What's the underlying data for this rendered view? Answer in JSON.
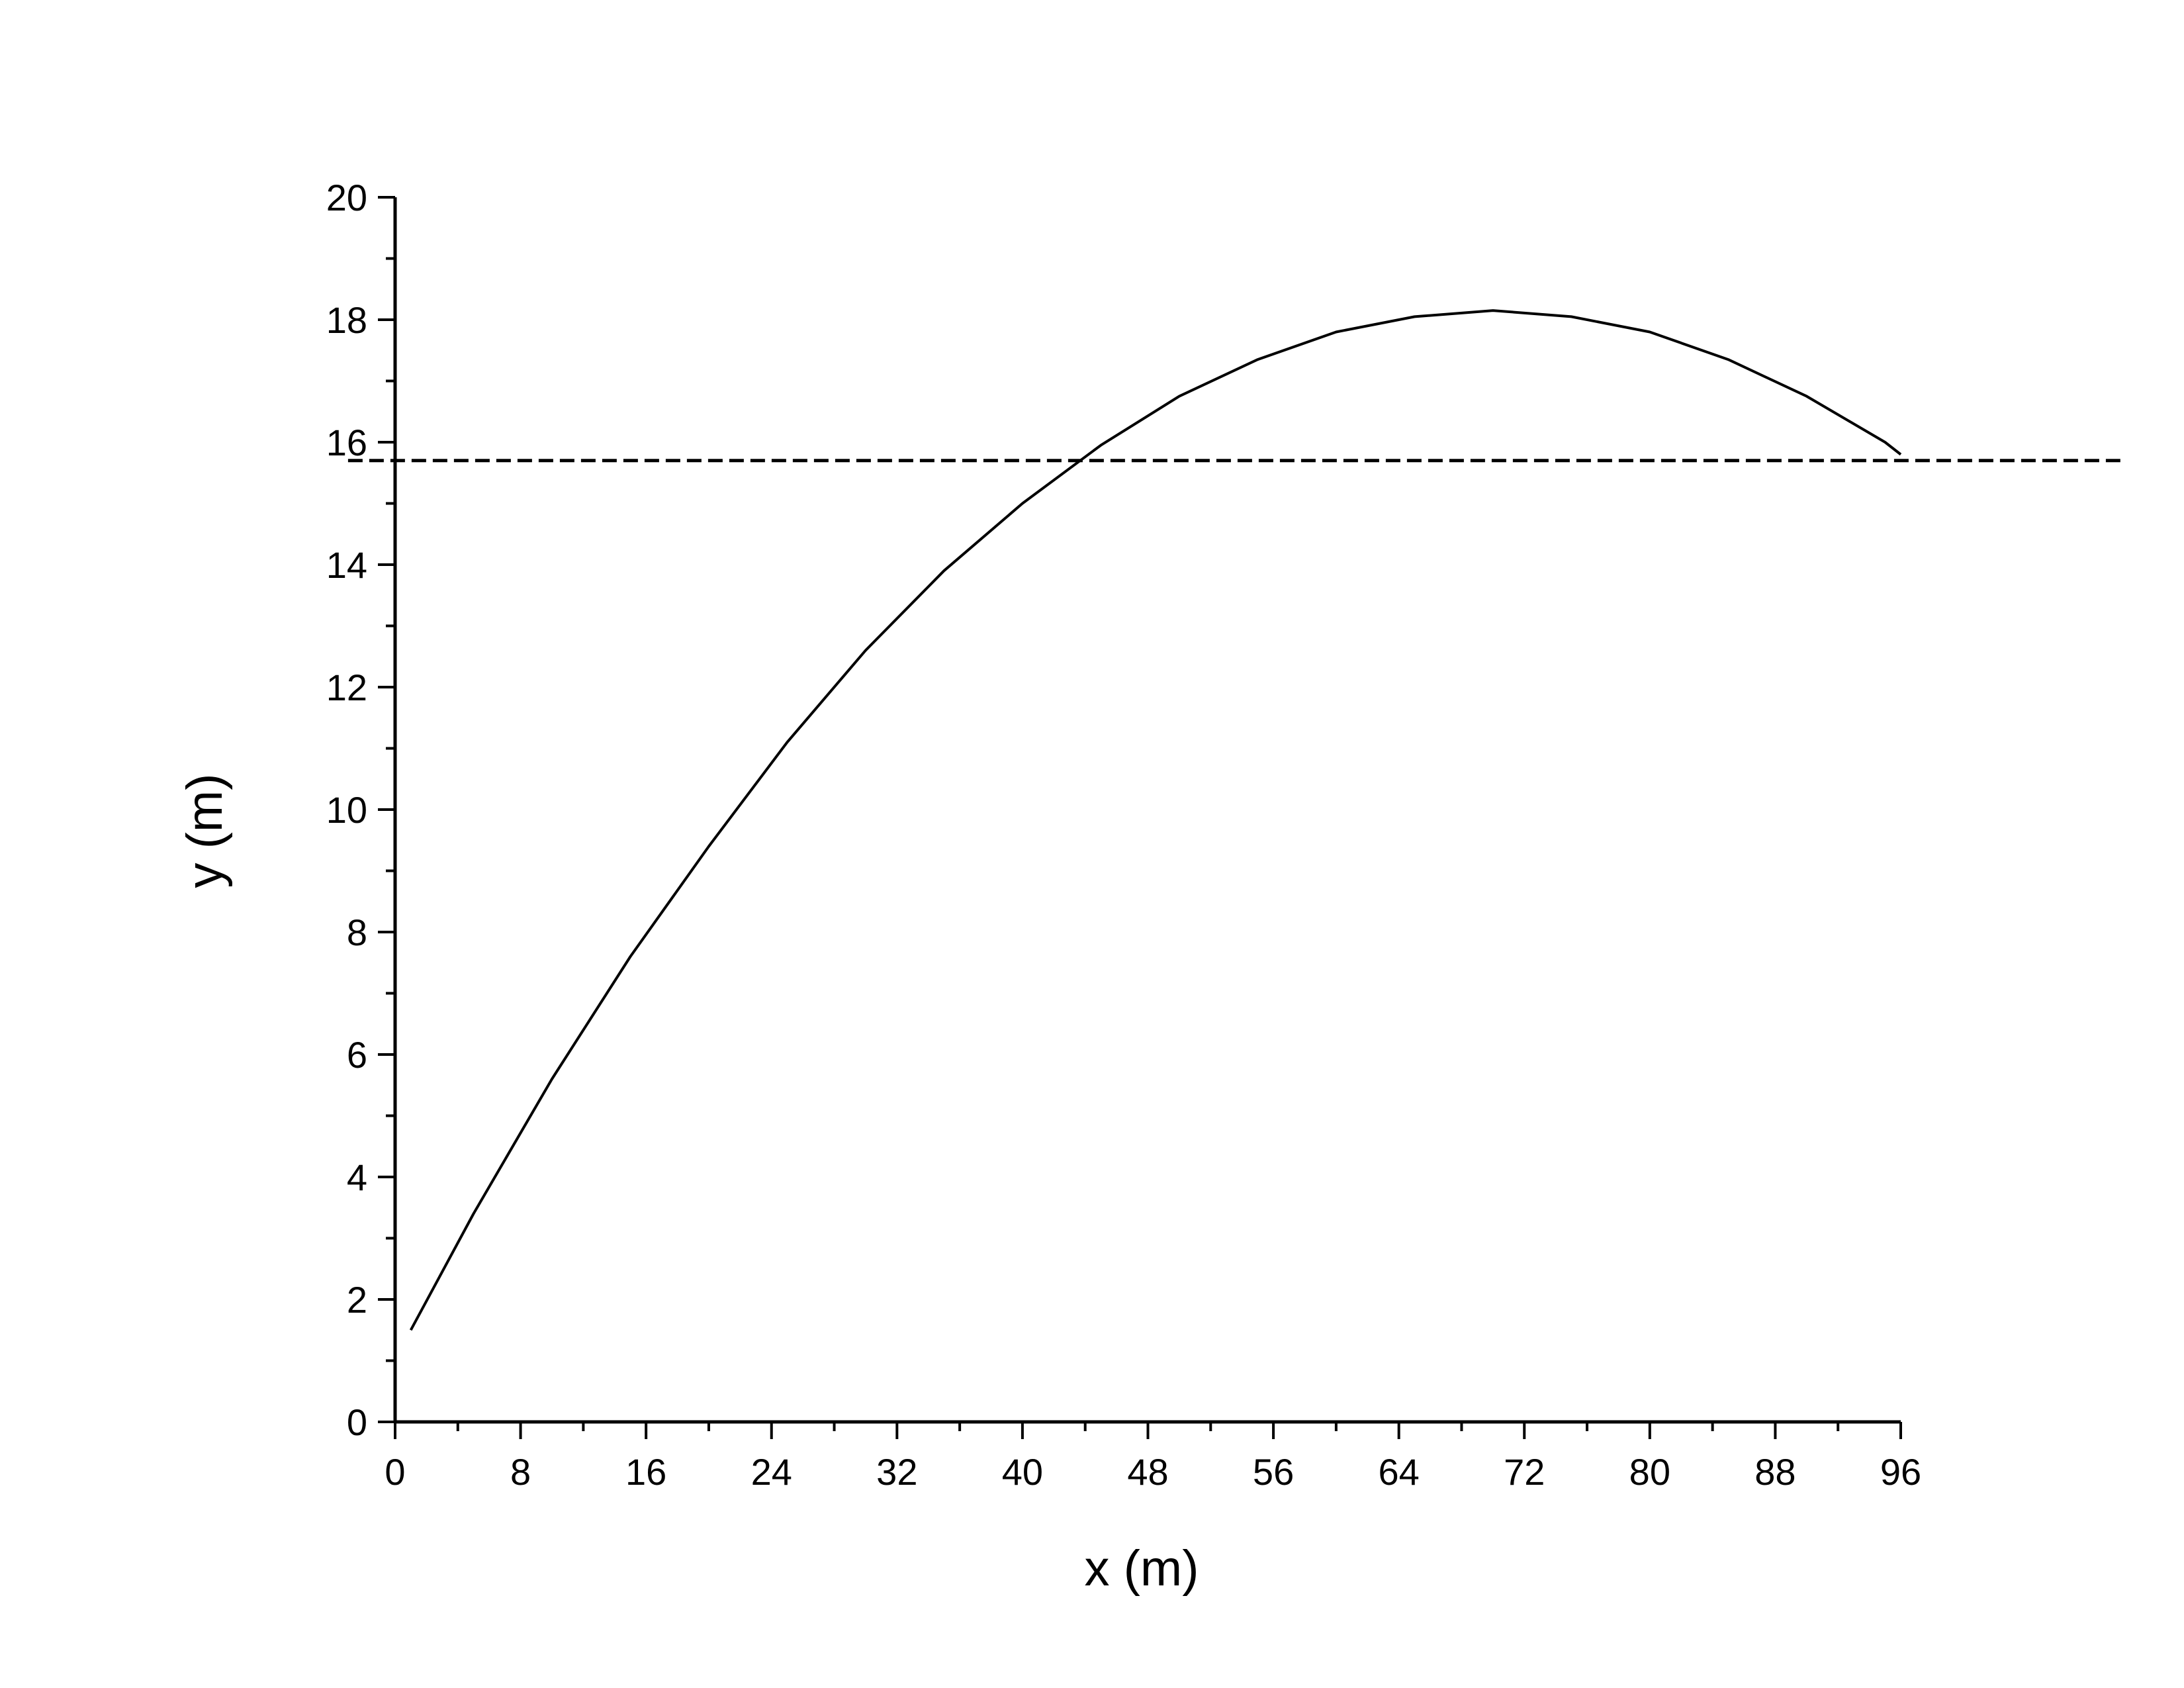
{
  "chart_data": {
    "type": "line",
    "title": "",
    "xlabel": "x (m)",
    "ylabel": "y (m)",
    "xlim": [
      0,
      96
    ],
    "ylim": [
      0,
      20
    ],
    "x_ticks": [
      0,
      8,
      16,
      24,
      32,
      40,
      48,
      56,
      64,
      72,
      80,
      88,
      96
    ],
    "y_ticks": [
      0,
      2,
      4,
      6,
      8,
      10,
      12,
      14,
      16,
      18,
      20
    ],
    "x_tick_labels": [
      "0",
      "8",
      "16",
      "24",
      "32",
      "40",
      "48",
      "56",
      "64",
      "72",
      "80",
      "88",
      "96"
    ],
    "y_tick_labels": [
      "0",
      "2",
      "4",
      "6",
      "8",
      "10",
      "12",
      "14",
      "16",
      "18",
      "20"
    ],
    "grid": false,
    "legend": "none",
    "series": [
      {
        "style": "solid",
        "color": "#000000",
        "x": [
          1,
          5,
          10,
          15,
          20,
          25,
          30,
          35,
          40,
          45,
          50,
          55,
          60,
          65,
          70,
          75,
          80,
          85,
          90,
          95,
          96
        ],
        "y": [
          1.5,
          3.4,
          5.6,
          7.6,
          9.4,
          11.1,
          12.6,
          13.9,
          15.0,
          15.95,
          16.75,
          17.35,
          17.8,
          18.05,
          18.15,
          18.05,
          17.8,
          17.35,
          16.75,
          16.0,
          15.8
        ]
      },
      {
        "style": "dashed",
        "color": "#000000",
        "x": [
          -3,
          110
        ],
        "y": [
          15.7,
          15.7
        ]
      }
    ]
  }
}
